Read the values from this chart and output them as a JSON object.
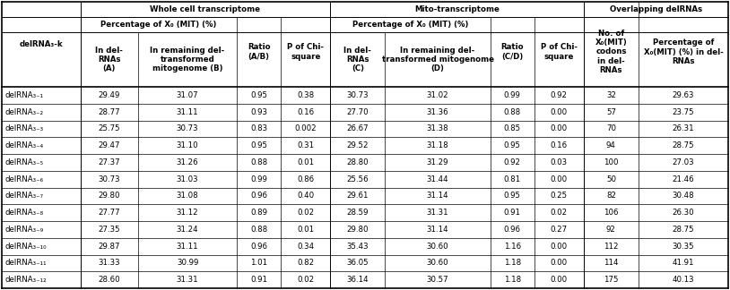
{
  "rows": [
    [
      "delRNA₃₋₁",
      "29.49",
      "31.07",
      "0.95",
      "0.38",
      "30.73",
      "31.02",
      "0.99",
      "0.92",
      "32",
      "29.63"
    ],
    [
      "delRNA₃₋₂",
      "28.77",
      "31.11",
      "0.93",
      "0.16",
      "27.70",
      "31.36",
      "0.88",
      "0.00",
      "57",
      "23.75"
    ],
    [
      "delRNA₃₋₃",
      "25.75",
      "30.73",
      "0.83",
      "0.002",
      "26.67",
      "31.38",
      "0.85",
      "0.00",
      "70",
      "26.31"
    ],
    [
      "delRNA₃₋₄",
      "29.47",
      "31.10",
      "0.95",
      "0.31",
      "29.52",
      "31.18",
      "0.95",
      "0.16",
      "94",
      "28.75"
    ],
    [
      "delRNA₃₋₅",
      "27.37",
      "31.26",
      "0.88",
      "0.01",
      "28.80",
      "31.29",
      "0.92",
      "0.03",
      "100",
      "27.03"
    ],
    [
      "delRNA₃₋₆",
      "30.73",
      "31.03",
      "0.99",
      "0.86",
      "25.56",
      "31.44",
      "0.81",
      "0.00",
      "50",
      "21.46"
    ],
    [
      "delRNA₃₋₇",
      "29.80",
      "31.08",
      "0.96",
      "0.40",
      "29.61",
      "31.14",
      "0.95",
      "0.25",
      "82",
      "30.48"
    ],
    [
      "delRNA₃₋₈",
      "27.77",
      "31.12",
      "0.89",
      "0.02",
      "28.59",
      "31.31",
      "0.91",
      "0.02",
      "106",
      "26.30"
    ],
    [
      "delRNA₃₋₉",
      "27.35",
      "31.24",
      "0.88",
      "0.01",
      "29.80",
      "31.14",
      "0.96",
      "0.27",
      "92",
      "28.75"
    ],
    [
      "delRNA₃₋₁₀",
      "29.87",
      "31.11",
      "0.96",
      "0.34",
      "35.43",
      "30.60",
      "1.16",
      "0.00",
      "112",
      "30.35"
    ],
    [
      "delRNA₃₋₁₁",
      "31.33",
      "30.99",
      "1.01",
      "0.82",
      "36.05",
      "30.60",
      "1.18",
      "0.00",
      "114",
      "41.91"
    ],
    [
      "delRNA₃₋₁₂",
      "28.60",
      "31.31",
      "0.91",
      "0.02",
      "36.14",
      "30.57",
      "1.18",
      "0.00",
      "175",
      "40.13"
    ]
  ],
  "bg_color": "#ffffff",
  "line_color": "#000000",
  "font_size": 6.2,
  "header_font_size": 6.2
}
